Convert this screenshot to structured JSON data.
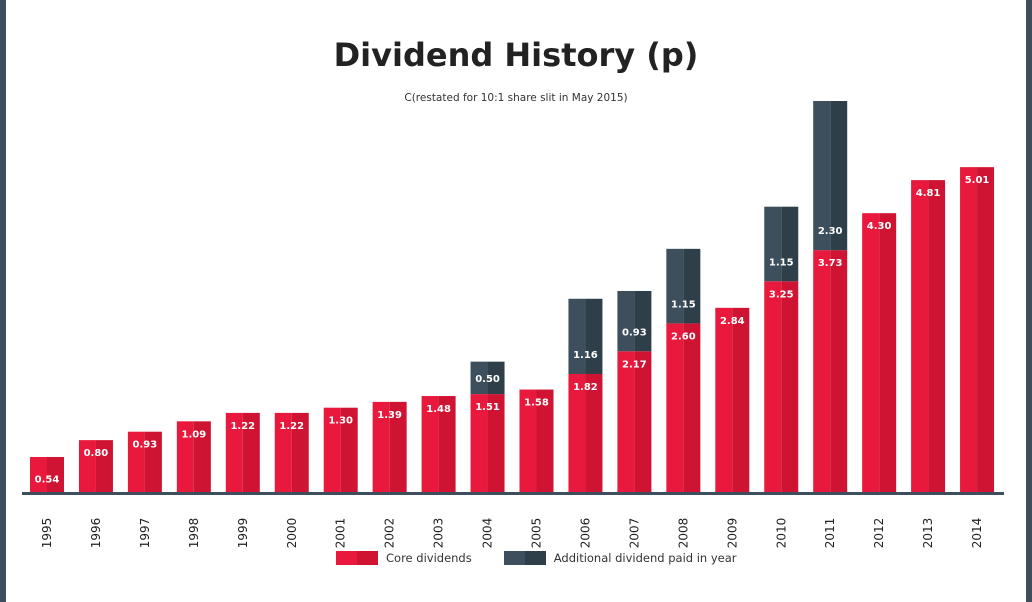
{
  "chart_data": {
    "type": "bar",
    "stacked": true,
    "title": "Dividend History (p)",
    "subtitle": "C(restated for 10:1 share slit in May 2015)",
    "categories": [
      "1995",
      "1996",
      "1997",
      "1998",
      "1999",
      "2000",
      "2001",
      "2002",
      "2003",
      "2004",
      "2005",
      "2006",
      "2007",
      "2008",
      "2009",
      "2010",
      "2011",
      "2012",
      "2013",
      "2014"
    ],
    "series": [
      {
        "name": "Core dividends",
        "color": "#e8193c",
        "color_shade": "#cf1433",
        "values": [
          0.54,
          0.8,
          0.93,
          1.09,
          1.22,
          1.22,
          1.3,
          1.39,
          1.48,
          1.51,
          1.58,
          1.82,
          2.17,
          2.6,
          2.84,
          3.25,
          3.73,
          4.3,
          4.81,
          5.01
        ]
      },
      {
        "name": "Additional dividend paid in year",
        "color": "#3d4f5c",
        "color_shade": "#2f3f4a",
        "values": [
          null,
          null,
          null,
          null,
          null,
          null,
          null,
          null,
          null,
          0.5,
          null,
          1.16,
          0.93,
          1.15,
          null,
          1.15,
          2.3,
          null,
          null,
          null
        ]
      }
    ],
    "ylim": [
      0,
      6.03
    ],
    "grid": false,
    "legend_position": "bottom",
    "xtick_rotation": -90
  }
}
